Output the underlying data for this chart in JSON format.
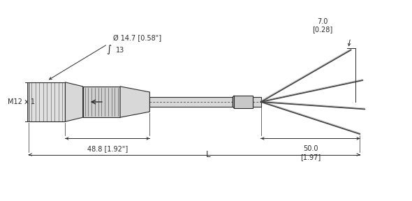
{
  "bg_color": "#ffffff",
  "line_color": "#2a2a2a",
  "figsize": [
    5.9,
    2.88
  ],
  "dpi": 100,
  "labels": {
    "diameter": "Ø 14.7 [0.58\"]",
    "spanner": "13",
    "m12": "M12 x 1",
    "dim488": "48.8 [1.92\"]",
    "dim7": "7.0\n[0.28]",
    "dim50": "50.0\n[1.97]",
    "L": "L"
  },
  "font_size": 7.0
}
